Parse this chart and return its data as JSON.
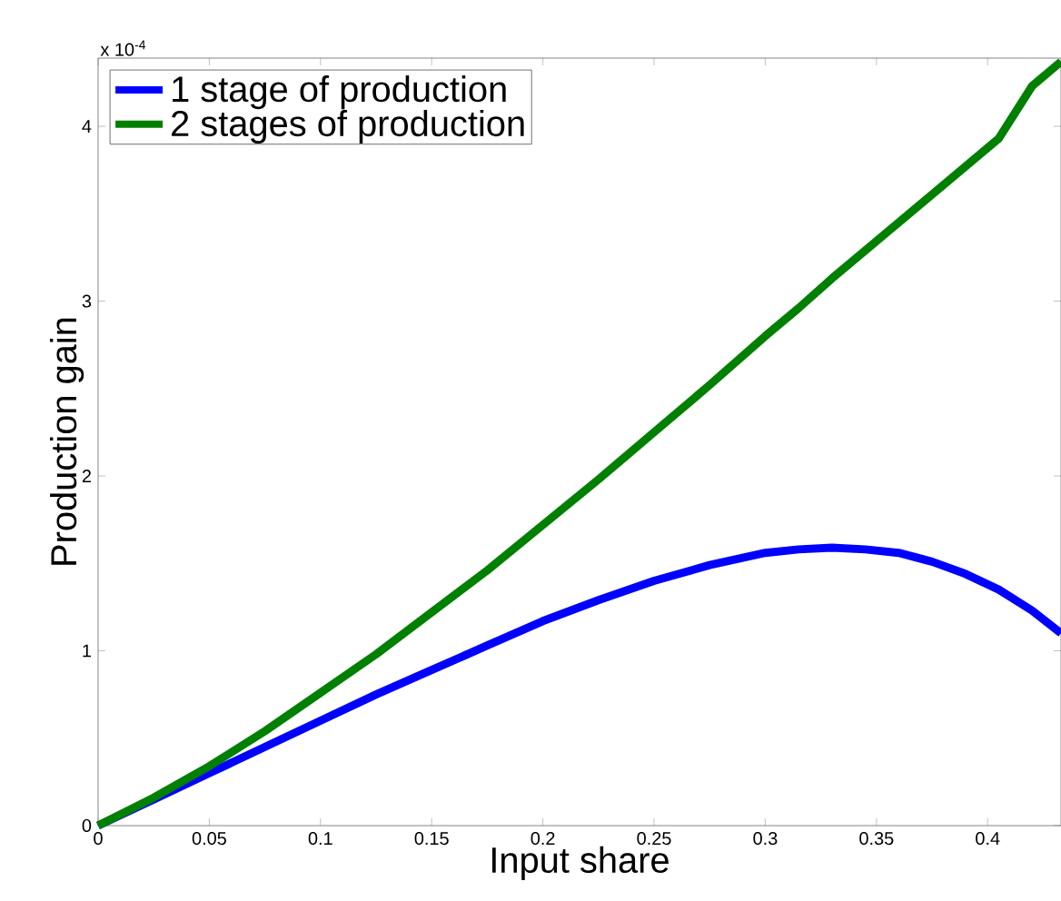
{
  "chart_data": {
    "type": "line",
    "xlabel": "Input share",
    "ylabel": "Production gain",
    "annotations": [
      "x 10$^{-4}$"
    ],
    "xlim": [
      0,
      0.433
    ],
    "ylim": [
      0,
      4.39
    ],
    "xticks": [
      0,
      0.05,
      0.1,
      0.15,
      0.2,
      0.25,
      0.3,
      0.35,
      0.4
    ],
    "yticks": [
      0,
      1,
      2,
      3,
      4
    ],
    "legend": "top left",
    "x": [
      0,
      0.025,
      0.05,
      0.075,
      0.1,
      0.125,
      0.15,
      0.175,
      0.2,
      0.225,
      0.25,
      0.275,
      0.3,
      0.315,
      0.33,
      0.345,
      0.36,
      0.375,
      0.39,
      0.405,
      0.42,
      0.433
    ],
    "series": [
      {
        "name": "1 stage of production",
        "color": "#0000ff",
        "values": [
          0,
          0.15,
          0.3,
          0.45,
          0.6,
          0.75,
          0.89,
          1.03,
          1.17,
          1.29,
          1.4,
          1.49,
          1.56,
          1.58,
          1.59,
          1.58,
          1.56,
          1.51,
          1.44,
          1.35,
          1.23,
          1.1
        ]
      },
      {
        "name": "2 stages of production",
        "color": "#008000",
        "values": [
          0,
          0.16,
          0.34,
          0.54,
          0.76,
          0.98,
          1.22,
          1.46,
          1.72,
          1.98,
          2.25,
          2.52,
          2.8,
          2.96,
          3.13,
          3.29,
          3.45,
          3.61,
          3.77,
          3.93,
          4.23,
          4.37
        ]
      }
    ]
  }
}
